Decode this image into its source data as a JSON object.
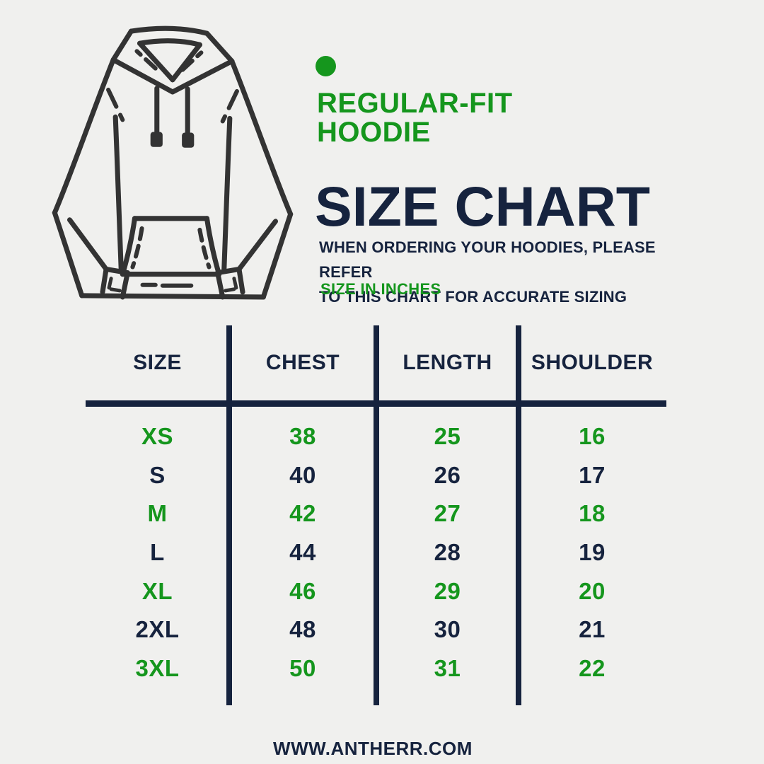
{
  "colors": {
    "bg": "#f0f0ee",
    "navy": "#16233e",
    "green": "#15961d",
    "ink": "#333333"
  },
  "header": {
    "product_line1": "REGULAR-FIT",
    "product_line2": "HOODIE",
    "title": "SIZE CHART",
    "subtitle_line1": "WHEN ORDERING YOUR HOODIES, PLEASE REFER",
    "subtitle_line2": "TO THIS CHART FOR ACCURATE SIZING",
    "unit_note": "SIZE IN INCHES"
  },
  "footer": {
    "website": "WWW.ANTHERR.COM"
  },
  "chart_data": {
    "type": "table",
    "title": "SIZE CHART",
    "unit": "inches",
    "columns": [
      "SIZE",
      "CHEST",
      "LENGTH",
      "SHOULDER"
    ],
    "rows": [
      {
        "size": "XS",
        "chest": "38",
        "length": "25",
        "shoulder": "16",
        "accent": true
      },
      {
        "size": "S",
        "chest": "40",
        "length": "26",
        "shoulder": "17",
        "accent": false
      },
      {
        "size": "M",
        "chest": "42",
        "length": "27",
        "shoulder": "18",
        "accent": true
      },
      {
        "size": "L",
        "chest": "44",
        "length": "28",
        "shoulder": "19",
        "accent": false
      },
      {
        "size": "XL",
        "chest": "46",
        "length": "29",
        "shoulder": "20",
        "accent": true
      },
      {
        "size": "2XL",
        "chest": "48",
        "length": "30",
        "shoulder": "21",
        "accent": false
      },
      {
        "size": "3XL",
        "chest": "50",
        "length": "31",
        "shoulder": "22",
        "accent": true
      }
    ]
  }
}
